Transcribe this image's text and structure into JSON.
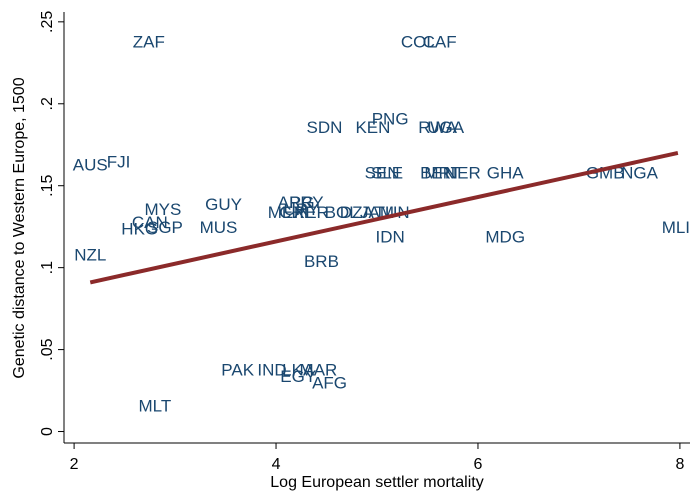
{
  "chart_data": {
    "type": "scatter",
    "xlabel": "Log European settler mortality",
    "ylabel": "Genetic distance to Western Europe, 1500",
    "xlim": [
      1.9,
      8.1
    ],
    "ylim": [
      -0.007,
      0.256
    ],
    "xticks": [
      2,
      4,
      6,
      8
    ],
    "yticks": [
      {
        "value": 0,
        "label": "0"
      },
      {
        "value": 0.05,
        "label": ".05"
      },
      {
        "value": 0.1,
        "label": ".1"
      },
      {
        "value": 0.15,
        "label": ".15"
      },
      {
        "value": 0.2,
        "label": ".2"
      },
      {
        "value": 0.25,
        "label": ".25"
      }
    ],
    "marker_color": "#1a476f",
    "points": {
      "labels": [
        "ZAF",
        "COL",
        "CAF",
        "PNG",
        "SDN",
        "KEN",
        "RWA",
        "UGA",
        "AUS",
        "FJI",
        "SEN",
        "SLE",
        "BEN",
        "MRT",
        "NER",
        "GHA",
        "GMB",
        "NGA",
        "MLI",
        "MDG",
        "IDN",
        "MYS",
        "GUY",
        "MUS",
        "CAN",
        "HKG",
        "SGP",
        "NZL",
        "ARG",
        "PRY",
        "URY",
        "MEX",
        "CHL",
        "PER",
        "BOL",
        "DZA",
        "JAM",
        "TUN",
        "BRB",
        "PAK",
        "IND",
        "LKA",
        "MAR",
        "EGY",
        "AFG",
        "MLT"
      ],
      "x": [
        2.74,
        5.41,
        5.62,
        5.13,
        4.48,
        4.96,
        5.6,
        5.68,
        2.16,
        2.44,
        5.05,
        5.1,
        5.6,
        5.65,
        5.85,
        6.27,
        7.26,
        7.6,
        7.96,
        6.27,
        5.13,
        2.88,
        3.48,
        3.43,
        2.75,
        2.65,
        2.9,
        2.16,
        4.2,
        4.3,
        4.25,
        4.1,
        4.2,
        4.35,
        4.65,
        4.8,
        5.0,
        5.15,
        4.45,
        3.62,
        3.96,
        4.22,
        4.42,
        4.22,
        4.53,
        2.8
      ],
      "y": [
        0.237,
        0.237,
        0.237,
        0.19,
        0.185,
        0.185,
        0.185,
        0.185,
        0.162,
        0.164,
        0.157,
        0.157,
        0.157,
        0.157,
        0.157,
        0.157,
        0.157,
        0.157,
        0.124,
        0.118,
        0.118,
        0.135,
        0.138,
        0.124,
        0.127,
        0.123,
        0.124,
        0.107,
        0.139,
        0.139,
        0.135,
        0.133,
        0.133,
        0.133,
        0.133,
        0.133,
        0.133,
        0.133,
        0.103,
        0.037,
        0.037,
        0.037,
        0.037,
        0.033,
        0.029,
        0.015
      ]
    },
    "fit": {
      "x": [
        2.16,
        7.98
      ],
      "y": [
        0.091,
        0.17
      ],
      "color": "#8b2a2a"
    }
  }
}
